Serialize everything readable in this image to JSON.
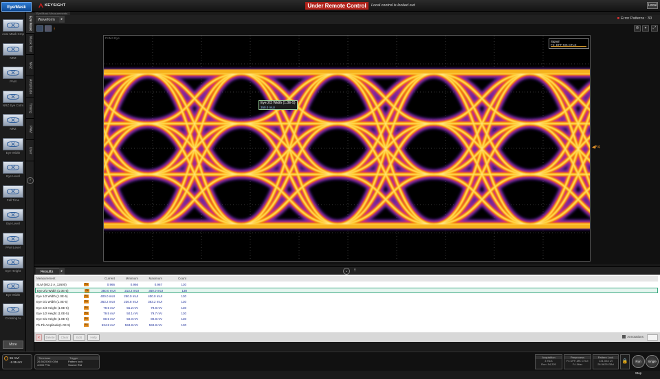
{
  "topbar": {
    "mode_button": "Eye/Mask",
    "brand": "KEYSIGHT",
    "banner": "Under Remote Control",
    "message": "Local control is locked out",
    "local_button": "Local"
  },
  "left_tools": [
    {
      "label": "Auto Mask Cmp"
    },
    {
      "label": "NRZ"
    },
    {
      "label": "PAM"
    },
    {
      "label": "NRZ Eye Cntrs"
    },
    {
      "label": "NRZ"
    },
    {
      "label": "Eye Width"
    },
    {
      "label": "Eye Level"
    },
    {
      "label": "Fall Time"
    },
    {
      "label": "Eye Level"
    },
    {
      "label": "PAM Level"
    },
    {
      "label": "Eye Height"
    },
    {
      "label": "Eye Width"
    },
    {
      "label": "Crossing %"
    }
  ],
  "more_button": "More",
  "vertical_tabs": [
    "Eye Mask",
    "Mask Test",
    "NRZ",
    "Amplitude",
    "Timing",
    "PAM",
    "User"
  ],
  "waveform": {
    "tab_label": "Waveform",
    "top_strip": "Eye/Mask Measurements",
    "error_pattern": "Error Patterns : 30",
    "plot_title": "PAM4 Eye",
    "cursor_label": "Eye 2/3 Width (1.0E-5)",
    "cursor_sub": "350.0 mUI",
    "marker": "F4",
    "legend": {
      "title": "Signal",
      "subtitle": "F4: DFF-MK CTLE"
    },
    "accent_color": "#e8962c"
  },
  "results": {
    "tab_label": "Results",
    "columns": [
      "Measurement",
      "Current",
      "Minimum",
      "Maximum",
      "Count"
    ],
    "rows": [
      {
        "name": "SLM (802.3 A_12600)",
        "source": "F4",
        "current": "0.966",
        "minimum": "0.966",
        "maximum": "0.967",
        "count": "130",
        "selected": false
      },
      {
        "name": "Eye 2/3 Width (1.0E-5)",
        "source": "F4",
        "current": "350.0 mUI",
        "minimum": "213.2 mUI",
        "maximum": "350.0 mUI",
        "count": "130",
        "selected": true
      },
      {
        "name": "Eye 1/2 Width (1.0E-5)",
        "source": "F4",
        "current": "400.0 mUI",
        "minimum": "250.0 mUI",
        "maximum": "400.0 mUI",
        "count": "130",
        "selected": false
      },
      {
        "name": "Eye 0/1 Width (1.0E-5)",
        "source": "F4",
        "current": "363.2 mUI",
        "minimum": "236.8 mUI",
        "maximum": "363.2 mUI",
        "count": "130",
        "selected": false
      },
      {
        "name": "Eye 2/3 Height (1.0E-5)",
        "source": "F4",
        "current": "79.5 mV",
        "minimum": "55.2 mV",
        "maximum": "79.8 mV",
        "count": "130",
        "selected": false
      },
      {
        "name": "Eye 1/2 Height (1.0E-5)",
        "source": "F4",
        "current": "79.5 mV",
        "minimum": "50.1 mV",
        "maximum": "79.7 mV",
        "count": "130",
        "selected": false
      },
      {
        "name": "Eye 0/1 Height (1.0E-5)",
        "source": "F4",
        "current": "80.5 mV",
        "minimum": "50.0 mV",
        "maximum": "80.8 mV",
        "count": "130",
        "selected": false
      },
      {
        "name": "Pk-Pk Amplitude(1.0E-5)",
        "source": "F4",
        "current": "534.8 mV",
        "minimum": "534.8 mV",
        "maximum": "534.8 mV",
        "count": "130",
        "selected": false
      }
    ],
    "footer_buttons": [
      "Delete",
      "Clear",
      "Edit",
      "Help"
    ],
    "annotations_label": "Annotations"
  },
  "bottombar": {
    "channel": {
      "line1": "55 mV/",
      "line2": "-2.35 mV"
    },
    "timebase": {
      "title": "Timebase",
      "line1": "26.5625000 GBd",
      "line2": "4.000 PHz",
      "trigger_title": "Trigger",
      "trigger_line1": "Pattern lock",
      "trigger_line2": "Source Rtd"
    },
    "panels": [
      {
        "title": "Acquisition",
        "line1": "4 Hz/s",
        "line2": "Run: 54,320"
      },
      {
        "title": "Preprocess",
        "line1": "F4 DFF-MK CTLE",
        "line2": "F4 Jitter"
      },
      {
        "title": "Pattern Lock",
        "line1": "131,054 UI",
        "line2": "26.5625 GBd"
      }
    ],
    "buttons": [
      "Run Stop",
      "Single"
    ]
  }
}
